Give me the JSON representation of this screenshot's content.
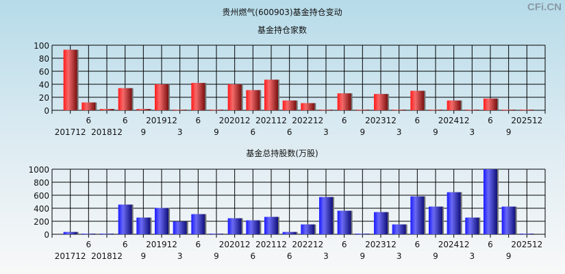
{
  "title": "贵州燃气(600903)基金持仓变动",
  "watermark": "CFi.CN",
  "colors": {
    "top_bar": "#e8232a",
    "bottom_bar": "#2b2ee8"
  },
  "chart_data": [
    {
      "type": "bar",
      "title": "基金持仓家数",
      "ylim": [
        0,
        100
      ],
      "yticks": [
        0,
        20,
        40,
        60,
        80,
        100
      ],
      "grid": true,
      "categories": [
        "201712",
        "6",
        "201812",
        "6",
        "9",
        "201912",
        "3",
        "6",
        "9",
        "202012",
        "6",
        "202112",
        "6",
        "202212",
        "3",
        "6",
        "9",
        "202312",
        "3",
        "6",
        "9",
        "202412",
        "3",
        "6",
        "9",
        "202512"
      ],
      "values": [
        93,
        12,
        2,
        34,
        2,
        40,
        1,
        42,
        1,
        40,
        31,
        47,
        15,
        11,
        1,
        26,
        1,
        25,
        1,
        30,
        1,
        15,
        1,
        18,
        1,
        1
      ]
    },
    {
      "type": "bar",
      "title": "基金总持股数(万股)",
      "ylim": [
        0,
        1000
      ],
      "yticks": [
        0,
        200,
        400,
        600,
        800,
        1000
      ],
      "grid": true,
      "categories": [
        "201712",
        "6",
        "201812",
        "6",
        "9",
        "201912",
        "3",
        "6",
        "9",
        "202012",
        "6",
        "202112",
        "6",
        "202212",
        "3",
        "6",
        "9",
        "202312",
        "3",
        "6",
        "9",
        "202412",
        "3",
        "6",
        "9",
        "202512"
      ],
      "values": [
        35,
        10,
        10,
        456,
        256,
        404,
        196,
        309,
        10,
        246,
        214,
        267,
        35,
        151,
        572,
        361,
        10,
        340,
        151,
        582,
        425,
        646,
        256,
        1000,
        425,
        10
      ]
    }
  ]
}
